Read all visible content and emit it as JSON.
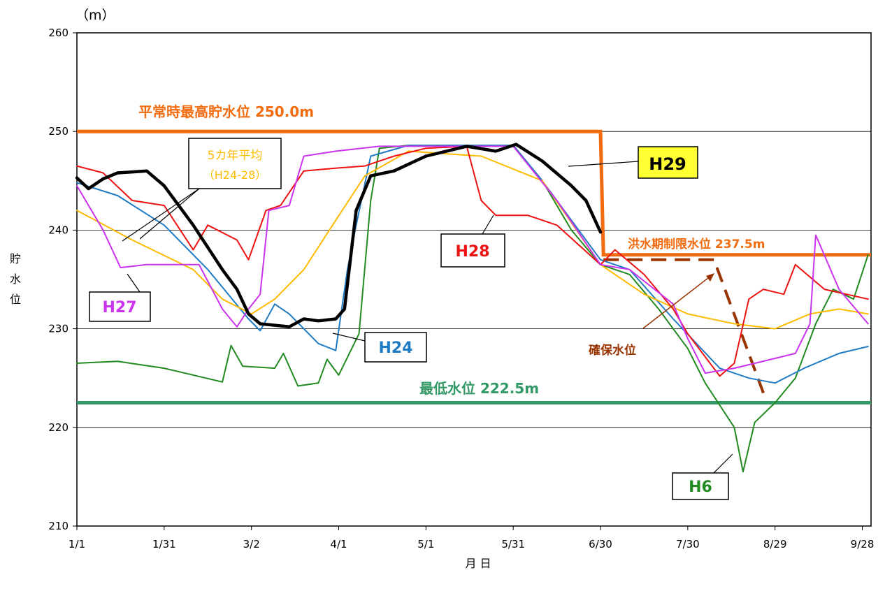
{
  "chart_data": {
    "type": "line",
    "y_unit": "（m）",
    "ylabel": "貯水位",
    "xlabel": "月 日",
    "ylim": [
      210,
      260
    ],
    "yticks": [
      210,
      220,
      230,
      240,
      250,
      260
    ],
    "x_domain": [
      "1/1",
      "10/1"
    ],
    "xticks": [
      {
        "date": "1/1",
        "label": "1/1"
      },
      {
        "date": "1/31",
        "label": "1/31"
      },
      {
        "date": "3/2",
        "label": "3/2"
      },
      {
        "date": "4/1",
        "label": "4/1"
      },
      {
        "date": "5/1",
        "label": "5/1"
      },
      {
        "date": "5/31",
        "label": "5/31"
      },
      {
        "date": "6/30",
        "label": "6/30"
      },
      {
        "date": "7/30",
        "label": "7/30"
      },
      {
        "date": "8/29",
        "label": "8/29"
      },
      {
        "date": "9/28",
        "label": "9/28"
      }
    ],
    "reference_lines": [
      {
        "name": "平常時最高貯水位",
        "label": "平常時最高貯水位 250.0m",
        "color": "#f26c0f",
        "points": [
          [
            "1/1",
            250.0
          ],
          [
            "6/30",
            250.0
          ],
          [
            "7/1",
            237.5
          ],
          [
            "10/1",
            237.5
          ]
        ]
      },
      {
        "name": "最低水位",
        "label": "最低水位 222.5m",
        "color": "#339966",
        "points": [
          [
            "1/1",
            222.5
          ],
          [
            "10/1",
            222.5
          ]
        ]
      },
      {
        "name": "確保水位",
        "label": "確保水位",
        "color": "#993300",
        "dashed": true,
        "points": [
          [
            "7/1",
            237.0
          ],
          [
            "8/8",
            237.0
          ],
          [
            "8/25",
            223.5
          ]
        ]
      }
    ],
    "series_labels": {
      "limit": "洪水期制限水位 237.5m",
      "avg_line1": "5カ年平均",
      "avg_line2": "（H24-28）",
      "H29": "H29",
      "H28": "H28",
      "H27": "H27",
      "H24": "H24",
      "H6": "H6"
    },
    "series": [
      {
        "name": "H6",
        "color": "#218a21",
        "width": 2,
        "points": [
          [
            "1/1",
            226.5
          ],
          [
            "1/15",
            226.7
          ],
          [
            "1/31",
            226.0
          ],
          [
            "2/20",
            224.6
          ],
          [
            "2/23",
            228.3
          ],
          [
            "2/27",
            226.2
          ],
          [
            "3/10",
            226.0
          ],
          [
            "3/13",
            227.5
          ],
          [
            "3/18",
            224.2
          ],
          [
            "3/25",
            224.5
          ],
          [
            "3/28",
            226.9
          ],
          [
            "4/1",
            225.3
          ],
          [
            "4/8",
            229.5
          ],
          [
            "4/12",
            243.0
          ],
          [
            "4/15",
            248.3
          ],
          [
            "4/25",
            248.6
          ],
          [
            "5/31",
            248.6
          ],
          [
            "6/10",
            245.0
          ],
          [
            "6/20",
            240.0
          ],
          [
            "6/30",
            236.5
          ],
          [
            "7/10",
            235.5
          ],
          [
            "7/20",
            232.0
          ],
          [
            "7/30",
            228.0
          ],
          [
            "8/5",
            224.5
          ],
          [
            "8/15",
            220.0
          ],
          [
            "8/18",
            215.5
          ],
          [
            "8/22",
            220.5
          ],
          [
            "8/29",
            222.5
          ],
          [
            "9/5",
            225.0
          ],
          [
            "9/12",
            230.5
          ],
          [
            "9/18",
            234.0
          ],
          [
            "9/25",
            233.0
          ],
          [
            "9/30",
            237.5
          ]
        ]
      },
      {
        "name": "H24",
        "color": "#1f7bc4",
        "width": 2,
        "points": [
          [
            "1/1",
            244.8
          ],
          [
            "1/15",
            243.5
          ],
          [
            "1/31",
            240.5
          ],
          [
            "2/15",
            236.0
          ],
          [
            "3/1",
            231.0
          ],
          [
            "3/5",
            229.8
          ],
          [
            "3/10",
            232.5
          ],
          [
            "3/15",
            231.5
          ],
          [
            "3/25",
            228.5
          ],
          [
            "3/31",
            227.8
          ],
          [
            "4/4",
            236.0
          ],
          [
            "4/7",
            240.5
          ],
          [
            "4/12",
            247.5
          ],
          [
            "4/25",
            248.6
          ],
          [
            "5/31",
            248.6
          ],
          [
            "6/10",
            245.0
          ],
          [
            "6/30",
            237.0
          ],
          [
            "7/10",
            236.0
          ],
          [
            "7/25",
            231.0
          ],
          [
            "8/10",
            226.0
          ],
          [
            "8/20",
            225.0
          ],
          [
            "8/29",
            224.5
          ],
          [
            "9/8",
            226.0
          ],
          [
            "9/20",
            227.5
          ],
          [
            "9/30",
            228.2
          ]
        ]
      },
      {
        "name": "5カ年平均",
        "color": "#ffbb00",
        "width": 2,
        "points": [
          [
            "1/1",
            242.0
          ],
          [
            "1/20",
            239.0
          ],
          [
            "2/10",
            236.0
          ],
          [
            "2/20",
            233.0
          ],
          [
            "3/2",
            231.5
          ],
          [
            "3/10",
            233.0
          ],
          [
            "3/20",
            236.0
          ],
          [
            "3/31",
            241.0
          ],
          [
            "4/10",
            245.5
          ],
          [
            "4/25",
            248.0
          ],
          [
            "5/20",
            247.5
          ],
          [
            "6/10",
            245.0
          ],
          [
            "6/30",
            236.5
          ],
          [
            "7/15",
            233.5
          ],
          [
            "7/30",
            231.5
          ],
          [
            "8/15",
            230.5
          ],
          [
            "8/29",
            230.0
          ],
          [
            "9/10",
            231.5
          ],
          [
            "9/20",
            232.0
          ],
          [
            "9/30",
            231.5
          ]
        ]
      },
      {
        "name": "H28",
        "color": "#ee1111",
        "width": 2,
        "points": [
          [
            "1/1",
            246.5
          ],
          [
            "1/10",
            245.8
          ],
          [
            "1/20",
            243.0
          ],
          [
            "1/31",
            242.5
          ],
          [
            "2/10",
            238.0
          ],
          [
            "2/15",
            240.5
          ],
          [
            "2/25",
            239.0
          ],
          [
            "3/1",
            237.0
          ],
          [
            "3/7",
            242.0
          ],
          [
            "3/12",
            242.5
          ],
          [
            "3/20",
            246.0
          ],
          [
            "4/1",
            246.3
          ],
          [
            "4/10",
            246.5
          ],
          [
            "4/20",
            247.5
          ],
          [
            "5/1",
            248.3
          ],
          [
            "5/15",
            248.5
          ],
          [
            "5/20",
            243.0
          ],
          [
            "5/25",
            241.5
          ],
          [
            "6/5",
            241.5
          ],
          [
            "6/15",
            240.5
          ],
          [
            "6/30",
            236.5
          ],
          [
            "7/5",
            238.0
          ],
          [
            "7/15",
            235.5
          ],
          [
            "7/25",
            232.0
          ],
          [
            "7/30",
            229.5
          ],
          [
            "8/10",
            225.2
          ],
          [
            "8/15",
            226.5
          ],
          [
            "8/20",
            233.0
          ],
          [
            "8/25",
            234.0
          ],
          [
            "9/1",
            233.5
          ],
          [
            "9/5",
            236.5
          ],
          [
            "9/15",
            234.0
          ],
          [
            "9/30",
            233.0
          ]
        ]
      },
      {
        "name": "H27",
        "color": "#cc33ee",
        "width": 2,
        "points": [
          [
            "1/1",
            244.5
          ],
          [
            "1/10",
            240.0
          ],
          [
            "1/16",
            236.2
          ],
          [
            "1/25",
            236.5
          ],
          [
            "2/12",
            236.5
          ],
          [
            "2/20",
            232.0
          ],
          [
            "2/25",
            230.2
          ],
          [
            "3/1",
            232.0
          ],
          [
            "3/5",
            233.5
          ],
          [
            "3/8",
            242.0
          ],
          [
            "3/15",
            242.5
          ],
          [
            "3/20",
            247.5
          ],
          [
            "3/31",
            248.0
          ],
          [
            "4/15",
            248.5
          ],
          [
            "5/31",
            248.5
          ],
          [
            "6/15",
            243.0
          ],
          [
            "6/30",
            236.5
          ],
          [
            "7/10",
            236.0
          ],
          [
            "7/25",
            232.5
          ],
          [
            "7/30",
            229.0
          ],
          [
            "8/5",
            225.5
          ],
          [
            "8/15",
            226.0
          ],
          [
            "8/29",
            227.0
          ],
          [
            "9/5",
            227.5
          ],
          [
            "9/10",
            230.5
          ],
          [
            "9/12",
            239.5
          ],
          [
            "9/20",
            234.0
          ],
          [
            "9/30",
            230.5
          ]
        ]
      },
      {
        "name": "H29",
        "color": "#000000",
        "width": 4.5,
        "points": [
          [
            "1/1",
            245.3
          ],
          [
            "1/5",
            244.2
          ],
          [
            "1/10",
            245.2
          ],
          [
            "1/15",
            245.8
          ],
          [
            "1/25",
            246.0
          ],
          [
            "1/31",
            244.5
          ],
          [
            "2/10",
            240.5
          ],
          [
            "2/20",
            236.0
          ],
          [
            "2/25",
            234.0
          ],
          [
            "3/1",
            231.5
          ],
          [
            "3/5",
            230.5
          ],
          [
            "3/15",
            230.2
          ],
          [
            "3/20",
            231.0
          ],
          [
            "3/25",
            230.8
          ],
          [
            "3/31",
            231.0
          ],
          [
            "4/3",
            232.0
          ],
          [
            "4/7",
            242.0
          ],
          [
            "4/12",
            245.5
          ],
          [
            "4/20",
            246.0
          ],
          [
            "5/1",
            247.5
          ],
          [
            "5/15",
            248.5
          ],
          [
            "5/25",
            248.0
          ],
          [
            "6/1",
            248.7
          ],
          [
            "6/10",
            247.0
          ],
          [
            "6/20",
            244.5
          ],
          [
            "6/25",
            243.0
          ],
          [
            "6/30",
            239.8
          ]
        ]
      }
    ]
  }
}
